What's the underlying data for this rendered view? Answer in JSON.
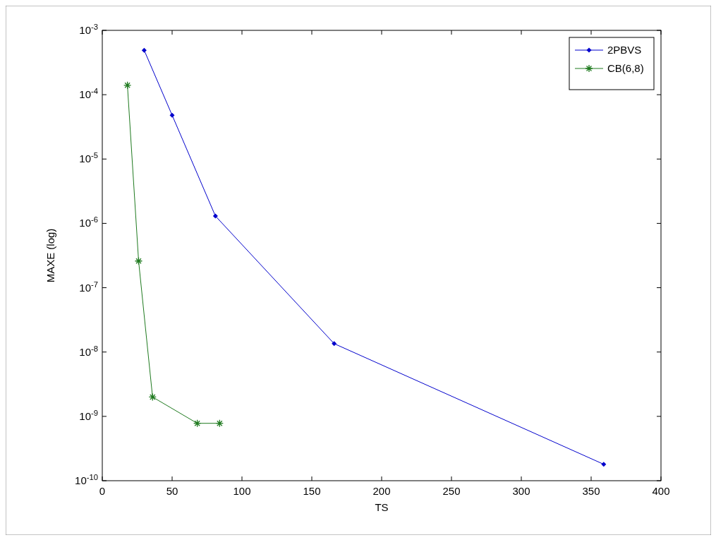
{
  "chart_data": {
    "type": "line",
    "xlabel": "TS",
    "ylabel": "MAXE (log)",
    "log": "y",
    "xlim": [
      0,
      400
    ],
    "xticks": [
      0,
      50,
      100,
      150,
      200,
      250,
      300,
      350,
      400
    ],
    "ylim": [
      1e-10,
      0.001
    ],
    "yticks": [
      {
        "value": 1e-10,
        "label": "10$^{-10}$"
      },
      {
        "value": 1e-09,
        "label": "10$^{-9}$"
      },
      {
        "value": 1e-08,
        "label": "10$^{-8}$"
      },
      {
        "value": 1e-07,
        "label": "10$^{-7}$"
      },
      {
        "value": 1e-06,
        "label": "10$^{-6}$"
      },
      {
        "value": 1e-05,
        "label": "10$^{-5}$"
      },
      {
        "value": 0.0001,
        "label": "10$^{-4}$"
      },
      {
        "value": 0.001,
        "label": "10$^{-3}$"
      }
    ],
    "grid": false,
    "legend": "top right",
    "line_style": "solid",
    "series": [
      {
        "name": "2PBVS",
        "color": "#0000cc",
        "marker": "diamond",
        "x": [
          30,
          50,
          81,
          166,
          359
        ],
        "values": [
          0.00049,
          4.8e-05,
          1.3e-06,
          1.35e-08,
          1.8e-10
        ]
      },
      {
        "name": "CB(6,8)",
        "color": "#1f7a1f",
        "marker": "cross",
        "x": [
          18,
          26,
          36,
          68,
          84
        ],
        "values": [
          0.00014,
          2.6e-07,
          2e-09,
          7.8e-10,
          7.8e-10
        ]
      }
    ]
  }
}
